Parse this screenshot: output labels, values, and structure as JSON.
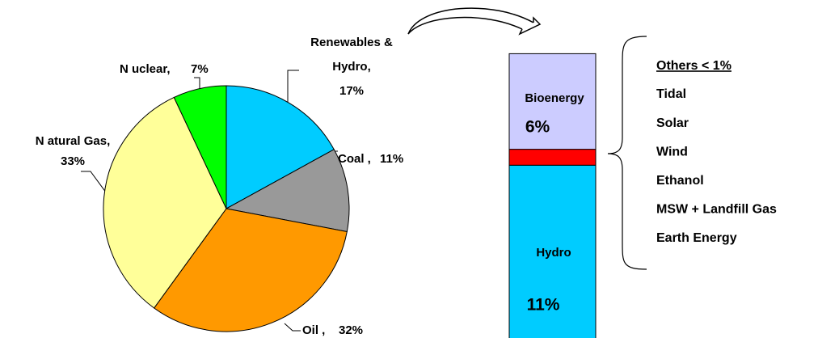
{
  "chart_data": [
    {
      "type": "pie",
      "categories": [
        "Renewables & Hydro,",
        "Coal ,",
        "Oil ,",
        "N atural Gas,",
        "N uclear,"
      ],
      "values": [
        17,
        11,
        32,
        33,
        7
      ],
      "value_labels": [
        "17%",
        "11%",
        "32%",
        "33%",
        "7%"
      ],
      "colors": [
        "#00ccff",
        "#999999",
        "#ff9900",
        "#ffff99",
        "#00ff00"
      ]
    },
    {
      "type": "stacked-bar",
      "series": [
        {
          "name": "Hydro",
          "color": "#00ccff",
          "values": [
            11
          ],
          "value_labels": [
            "11%"
          ]
        },
        {
          "name": null,
          "color": "#ff0000",
          "values": [
            1
          ]
        },
        {
          "name": "Bioenergy",
          "color": "#ccccff",
          "values": [
            6
          ],
          "value_labels": [
            "6%"
          ]
        }
      ],
      "annotation_title": "Others < 1%",
      "annotations": [
        "Tidal",
        "Solar",
        "Wind",
        "Ethanol",
        "MSW + Landfill Gas",
        "Earth Energy"
      ]
    }
  ]
}
